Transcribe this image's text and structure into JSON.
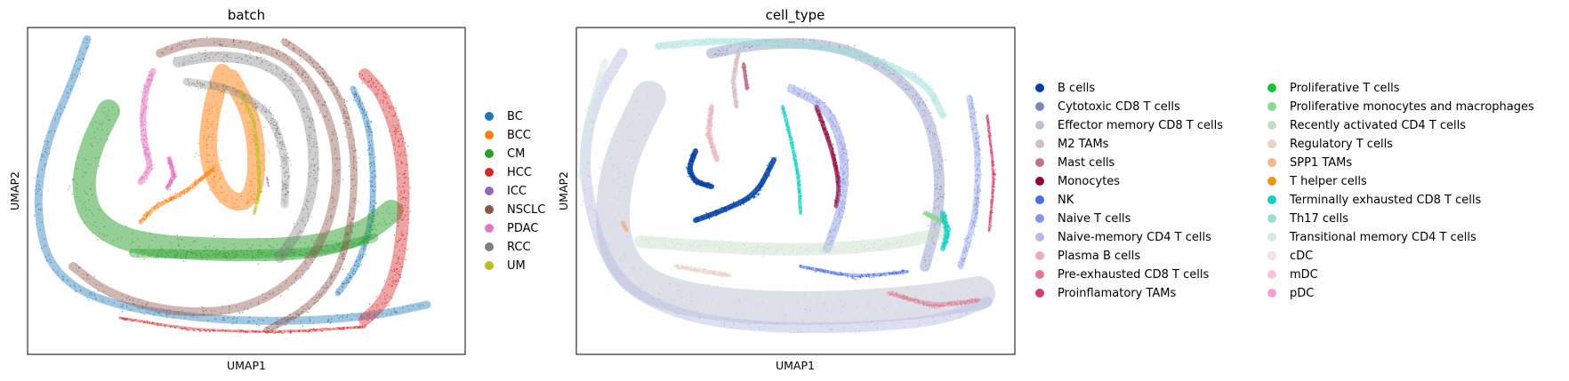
{
  "chart_data": [
    {
      "type": "scatter",
      "title": "batch",
      "xlabel": "UMAP1",
      "ylabel": "UMAP2",
      "grid": false,
      "legend_position": "right",
      "series": [
        {
          "name": "BC",
          "color": "#1f77b4"
        },
        {
          "name": "BCC",
          "color": "#ff7f0e"
        },
        {
          "name": "CM",
          "color": "#2ca02c"
        },
        {
          "name": "HCC",
          "color": "#d62728"
        },
        {
          "name": "ICC",
          "color": "#9467bd"
        },
        {
          "name": "NSCLC",
          "color": "#8c564b"
        },
        {
          "name": "PDAC",
          "color": "#e377c2"
        },
        {
          "name": "RCC",
          "color": "#7f7f7f"
        },
        {
          "name": "UM",
          "color": "#bcbd22"
        }
      ]
    },
    {
      "type": "scatter",
      "title": "cell_type",
      "xlabel": "UMAP1",
      "ylabel": "UMAP2",
      "grid": false,
      "legend_position": "right",
      "legend_columns": 2,
      "series": [
        {
          "name": "B cells",
          "color": "#023fa5"
        },
        {
          "name": "Cytotoxic CD8 T cells",
          "color": "#7d87b9"
        },
        {
          "name": "Effector memory CD8 T cells",
          "color": "#bec1d4"
        },
        {
          "name": "M2 TAMs",
          "color": "#d6bcc0"
        },
        {
          "name": "Mast cells",
          "color": "#bb7784"
        },
        {
          "name": "Monocytes",
          "color": "#8e063b"
        },
        {
          "name": "NK",
          "color": "#4a6fe3"
        },
        {
          "name": "Naive T cells",
          "color": "#8595e1"
        },
        {
          "name": "Naive-memory CD4 T cells",
          "color": "#b5bbe3"
        },
        {
          "name": "Plasma B cells",
          "color": "#e6afb9"
        },
        {
          "name": "Pre-exhausted CD8 T cells",
          "color": "#e07b91"
        },
        {
          "name": "Proinflamatory TAMs",
          "color": "#d33f6a"
        },
        {
          "name": "Proliferative T cells",
          "color": "#11c638"
        },
        {
          "name": "Proliferative monocytes and macrophages",
          "color": "#8dd593"
        },
        {
          "name": "Recently activated CD4 T cells",
          "color": "#c6dec7"
        },
        {
          "name": "Regulatory T cells",
          "color": "#ead3c6"
        },
        {
          "name": "SPP1 TAMs",
          "color": "#f0b98d"
        },
        {
          "name": "T helper cells",
          "color": "#ef9708"
        },
        {
          "name": "Terminally exhausted CD8 T cells",
          "color": "#0fcfc0"
        },
        {
          "name": "Th17 cells",
          "color": "#9cded6"
        },
        {
          "name": "Transitional memory CD4 T cells",
          "color": "#d5eae7"
        },
        {
          "name": "cDC",
          "color": "#f3e1eb"
        },
        {
          "name": "mDC",
          "color": "#f6c4e1"
        },
        {
          "name": "pDC",
          "color": "#f79cd4"
        }
      ]
    }
  ]
}
